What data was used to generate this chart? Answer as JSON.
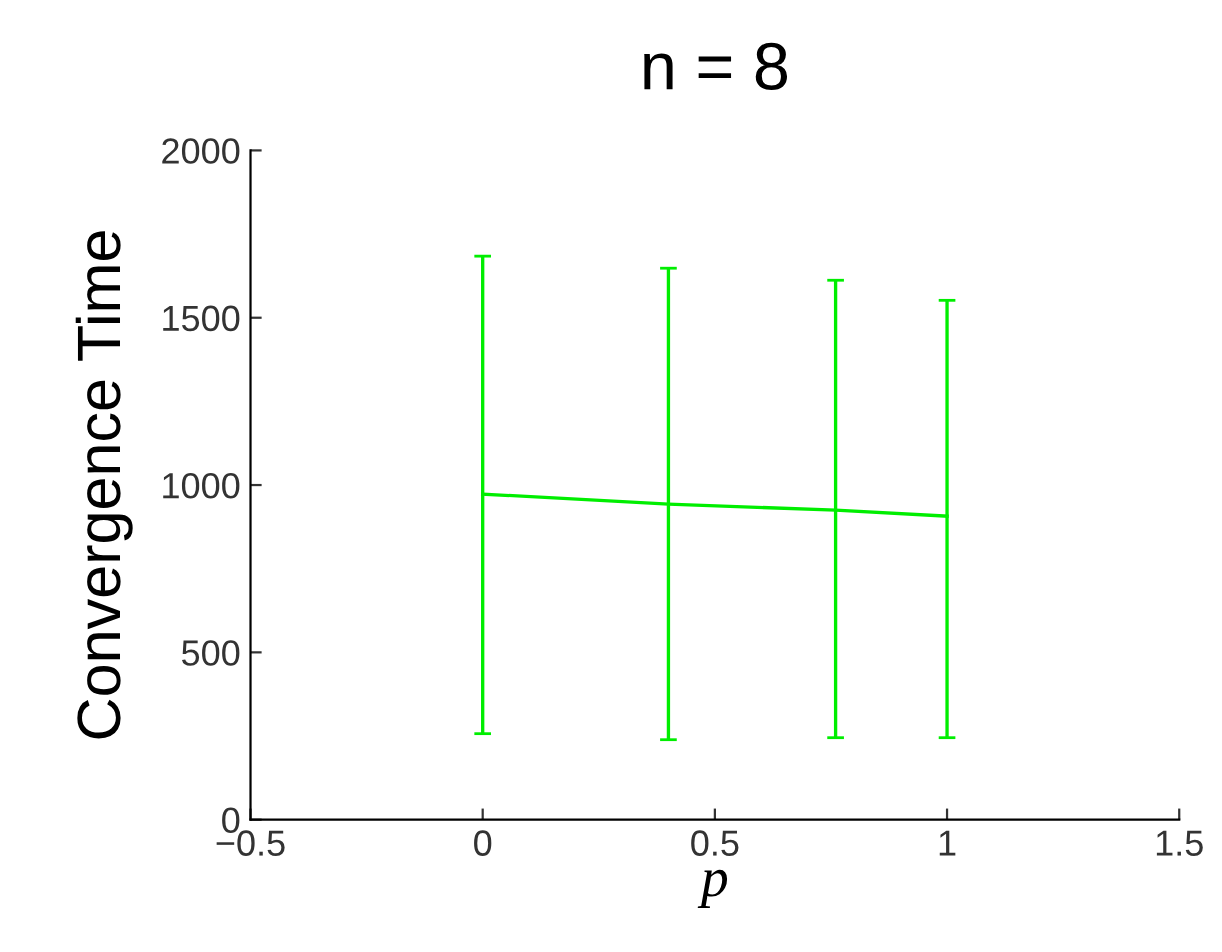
{
  "chart_data": {
    "type": "line",
    "title": "n = 8",
    "xlabel": "p",
    "ylabel": "Convergence Time",
    "x": [
      0,
      0.4,
      0.76,
      1
    ],
    "series": [
      {
        "color": "#00ee00",
        "values": [
          973,
          943,
          925,
          907
        ],
        "errors": [
          [
            257,
            1684
          ],
          [
            239,
            1648
          ],
          [
            245,
            1612
          ],
          [
            245,
            1552
          ]
        ]
      }
    ],
    "xlim": [
      -0.5,
      1.5
    ],
    "xticks": [
      {
        "value": -0.5,
        "label": "−0.5"
      },
      0,
      0.5,
      1,
      1.5
    ],
    "ylim": [
      0,
      2000
    ],
    "yticks": [
      0,
      500,
      1000,
      1500,
      2000
    ],
    "grid": false,
    "legend": false
  }
}
